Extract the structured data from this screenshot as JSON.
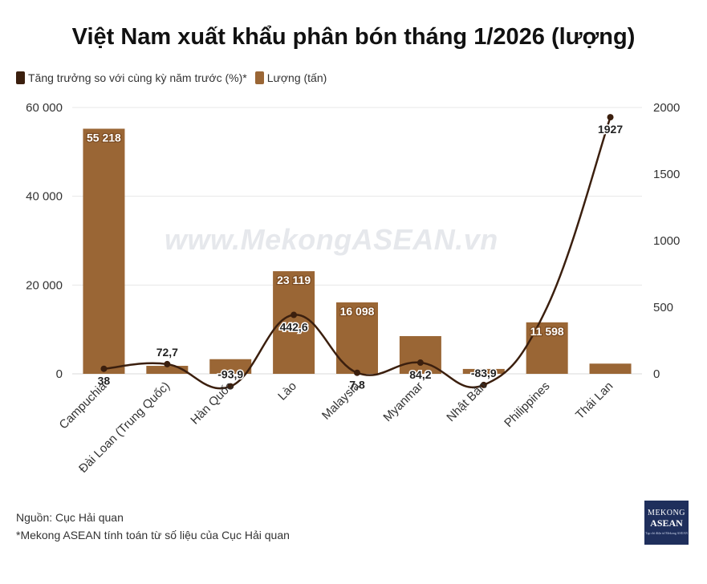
{
  "chart_data": {
    "type": "bar",
    "title": "Việt Nam xuất khẩu phân bón tháng 1/2026 (lượng)",
    "categories": [
      "Campuchia",
      "Đài Loan (Trung Quốc)",
      "Hàn Quốc",
      "Lào",
      "Malaysia",
      "Myanmar",
      "Nhật Bản",
      "Philippines",
      "Thái Lan"
    ],
    "series": [
      {
        "name": "Lượng (tấn)",
        "type": "bar",
        "axis": "left",
        "color": "#9a6635",
        "values": [
          55218,
          1800,
          3300,
          23119,
          16098,
          8500,
          1100,
          11598,
          2300
        ],
        "labels": [
          "55 218",
          "",
          "",
          "23 119",
          "16 098",
          "",
          "",
          "11 598",
          ""
        ]
      },
      {
        "name": "Tăng trưởng so với cùng kỳ năm trước (%)*",
        "type": "line",
        "axis": "right",
        "color": "#3b1f0e",
        "values": [
          38,
          72.7,
          -93.9,
          442.6,
          7.8,
          84.2,
          -83.9,
          500,
          1927
        ],
        "labels": [
          "38",
          "72,7",
          "-93,9",
          "442,6",
          "7,8",
          "84,2",
          "-83,9",
          "",
          "1927"
        ]
      }
    ],
    "y_left": {
      "min": 0,
      "max": 60000,
      "ticks": [
        0,
        20000,
        40000,
        60000
      ],
      "tick_labels": [
        "0",
        "20 000",
        "40 000",
        "60 000"
      ]
    },
    "y_right": {
      "min": -200,
      "max": 2000,
      "ticks": [
        0,
        500,
        1000,
        1500,
        2000
      ],
      "tick_labels": [
        "0",
        "500",
        "1000",
        "1500",
        "2000"
      ]
    },
    "grid": true,
    "legend_position": "top-left"
  },
  "legend": {
    "growth_label": "Tăng trưởng so với cùng kỳ năm trước (%)*",
    "volume_label": "Lượng (tấn)"
  },
  "watermark": "www.MekongASEAN.vn",
  "source": {
    "line1": "Nguồn: Cục Hải quan",
    "line2": "*Mekong ASEAN tính toán từ số liệu của Cục Hải quan"
  },
  "logo": {
    "line1": "MEKONG",
    "line2": "ASEAN",
    "line3": "Tạp chí điện tử Mekong ASEAN"
  },
  "colors": {
    "bar": "#9a6635",
    "line": "#3b1f0e",
    "grid": "#e7e7e7"
  }
}
